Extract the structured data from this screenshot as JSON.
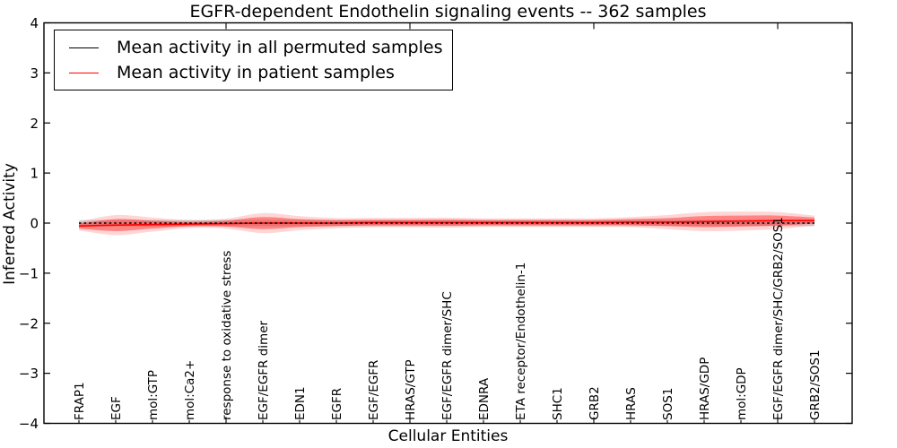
{
  "figure": {
    "title": "EGFR-dependent Endothelin signaling events -- 362 samples"
  },
  "axes": {
    "xlabel": "Cellular Entities",
    "ylabel": "Inferred Activity",
    "ytick_labels": [
      "4",
      "3",
      "2",
      "1",
      "0",
      "−1",
      "−2",
      "−3",
      "−4"
    ]
  },
  "legend": {
    "items": [
      {
        "label": "Mean activity in all permuted samples",
        "color": "#000000"
      },
      {
        "label": "Mean activity in patient samples",
        "color": "#ff0000"
      }
    ]
  },
  "chart_data": {
    "type": "line",
    "title": "EGFR-dependent Endothelin signaling events -- 362 samples",
    "xlabel": "Cellular Entities",
    "ylabel": "Inferred Activity",
    "ylim": [
      -4,
      4
    ],
    "yticks": [
      4,
      3,
      2,
      1,
      0,
      -1,
      -2,
      -3,
      -4
    ],
    "x_major_tick_every": 5,
    "grid": false,
    "legend_position": "upper left",
    "categories": [
      "FRAP1",
      "EGF",
      "mol:GTP",
      "mol:Ca2+",
      "response to oxidative stress",
      "EGF/EGFR dimer",
      "EDN1",
      "EGFR",
      "EGF/EGFR",
      "HRAS/GTP",
      "EGF/EGFR dimer/SHC",
      "EDNRA",
      "ETA receptor/Endothelin-1",
      "SHC1",
      "GRB2",
      "HRAS",
      "SOS1",
      "HRAS/GDP",
      "mol:GDP",
      "EGF/EGFR dimer/SHC/GRB2/SOS1",
      "GRB2/SOS1"
    ],
    "series": [
      {
        "name": "Mean activity in all permuted samples",
        "color": "#000000",
        "line_style": "dotted",
        "values": [
          0,
          0,
          0,
          0,
          0,
          0,
          0,
          0,
          0,
          0,
          0,
          0,
          0,
          0,
          0,
          0,
          0,
          0,
          0,
          0,
          0
        ]
      },
      {
        "name": "Mean activity in patient samples",
        "color": "#ff0000",
        "line_style": "solid",
        "values": [
          -0.06,
          -0.04,
          -0.03,
          -0.02,
          -0.01,
          0,
          0,
          0,
          0.01,
          0.01,
          0.01,
          0.01,
          0.01,
          0.01,
          0.01,
          0.02,
          0.02,
          0.03,
          0.04,
          0.05,
          0.05
        ]
      }
    ],
    "bands": [
      {
        "name": "permuted samples std band",
        "color": "#aaaaaa",
        "opacity": 0.45,
        "center_series": 0,
        "half_widths": [
          0.06,
          0.06,
          0.06,
          0.06,
          0.06,
          0.06,
          0.06,
          0.06,
          0.06,
          0.06,
          0.06,
          0.06,
          0.06,
          0.06,
          0.06,
          0.06,
          0.06,
          0.06,
          0.06,
          0.06,
          0.06
        ]
      },
      {
        "name": "patient samples std band outer",
        "color": "#ff0000",
        "opacity": 0.16,
        "center_series": 1,
        "half_widths": [
          0.085,
          0.2,
          0.14,
          0.08,
          0.1,
          0.2,
          0.14,
          0.1,
          0.095,
          0.095,
          0.1,
          0.085,
          0.085,
          0.085,
          0.085,
          0.1,
          0.14,
          0.19,
          0.19,
          0.17,
          0.1
        ]
      },
      {
        "name": "patient samples std band inner",
        "color": "#ff0000",
        "opacity": 0.38,
        "center_series": 1,
        "half_widths": [
          0.05,
          0.12,
          0.08,
          0.045,
          0.06,
          0.12,
          0.08,
          0.06,
          0.055,
          0.055,
          0.06,
          0.05,
          0.05,
          0.05,
          0.05,
          0.06,
          0.08,
          0.11,
          0.11,
          0.1,
          0.06
        ]
      }
    ]
  }
}
